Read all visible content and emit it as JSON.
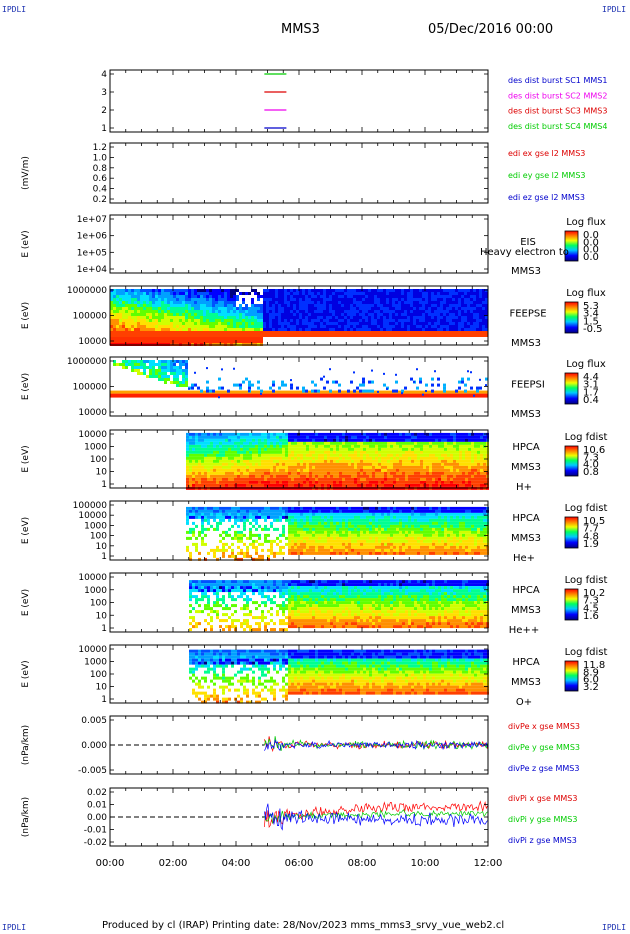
{
  "header": {
    "corner_tl": "IPDLI",
    "corner_tr": "IPDLI",
    "corner_bl": "IPDLI",
    "corner_br": "IPDLI",
    "mission": "MMS3",
    "datetime": "05/Dec/2016 00:00"
  },
  "footer": {
    "text": "Produced by cl (IRAP)   Printing date: 28/Nov/2023   mms_mms3_srvy_vue_web2.cl"
  },
  "colors": {
    "blue": "#0000ff",
    "red": "#ff0000",
    "green": "#00cc00",
    "magenta": "#ff00ff"
  },
  "chart_data": {
    "type": "spectrogram-stack",
    "x_ticks": [
      "00:00",
      "02:00",
      "04:00",
      "06:00",
      "08:00",
      "10:00",
      "12:00"
    ],
    "panels": [
      {
        "id": "burst",
        "y_ticks": [
          "4",
          "3",
          "2",
          "1"
        ],
        "ylabel": "",
        "legend": [
          {
            "text": "des dist burst SC1 MMS1",
            "color": "#0000cc"
          },
          {
            "text": "des dist burst SC2 MMS2",
            "color": "#ee00ee"
          },
          {
            "text": "des dist burst SC3 MMS3",
            "color": "#dd0000"
          },
          {
            "text": "des dist burst SC4 MMS4",
            "color": "#00cc00"
          }
        ],
        "segments": [
          {
            "level": 4,
            "t_start": 4.9,
            "t_end": 5.6,
            "color": "#00cc00"
          },
          {
            "level": 3,
            "t_start": 4.9,
            "t_end": 5.6,
            "color": "#dd0000"
          },
          {
            "level": 2,
            "t_start": 4.9,
            "t_end": 5.6,
            "color": "#ee00ee"
          },
          {
            "level": 1,
            "t_start": 4.9,
            "t_end": 5.6,
            "color": "#0000cc"
          }
        ]
      },
      {
        "id": "edi",
        "y_ticks": [
          "1.2",
          "1.0",
          "0.8",
          "0.6",
          "0.4",
          "0.2"
        ],
        "ylabel": "(mV/m)",
        "legend": [
          {
            "text": "edi ex gse l2 MMS3",
            "color": "#dd0000"
          },
          {
            "text": "edi ey gse l2 MMS3",
            "color": "#00cc00"
          },
          {
            "text": "edi ez gse l2 MMS3",
            "color": "#0000cc"
          }
        ]
      },
      {
        "id": "eis",
        "y_ticks": [
          "1e+07",
          "1e+06",
          "1e+05",
          "1e+04"
        ],
        "ylabel": "E (eV)",
        "instrument": [
          "EIS",
          "MMS3"
        ],
        "overlay": "Heavy electron to",
        "colorbar": {
          "title": "Log flux",
          "ticks": [
            "0.0",
            "0.0",
            "0.0",
            "0.0"
          ]
        }
      },
      {
        "id": "feepse",
        "y_ticks": [
          "1000000",
          "100000",
          "10000"
        ],
        "ylabel": "E (eV)",
        "instrument": [
          "FEEPSE",
          "MMS3"
        ],
        "colorbar": {
          "title": "Log flux",
          "ticks": [
            "5.3",
            "3.4",
            "1.5",
            "-0.5"
          ]
        }
      },
      {
        "id": "feepsi",
        "y_ticks": [
          "1000000",
          "100000",
          "10000"
        ],
        "ylabel": "E (eV)",
        "instrument": [
          "FEEPSI",
          "MMS3"
        ],
        "colorbar": {
          "title": "Log flux",
          "ticks": [
            "4.4",
            "3.1",
            "1.7",
            "0.4"
          ]
        }
      },
      {
        "id": "hpca_h",
        "y_ticks": [
          "10000",
          "1000",
          "100",
          "10",
          "1"
        ],
        "ylabel": "E (eV)",
        "instrument": [
          "HPCA",
          "MMS3",
          "H+"
        ],
        "colorbar": {
          "title": "Log fdist",
          "ticks": [
            "10.6",
            "7.3",
            "4.0",
            "0.8"
          ]
        }
      },
      {
        "id": "hpca_he",
        "y_ticks": [
          "100000",
          "10000",
          "1000",
          "100",
          "10",
          "1"
        ],
        "ylabel": "E (eV)",
        "instrument": [
          "HPCA",
          "MMS3",
          "He+"
        ],
        "colorbar": {
          "title": "Log fdist",
          "ticks": [
            "10.5",
            "7.7",
            "4.8",
            "1.9"
          ]
        }
      },
      {
        "id": "hpca_hepp",
        "y_ticks": [
          "10000",
          "1000",
          "100",
          "10",
          "1"
        ],
        "ylabel": "E (eV)",
        "instrument": [
          "HPCA",
          "MMS3",
          "He++"
        ],
        "colorbar": {
          "title": "Log fdist",
          "ticks": [
            "10.2",
            "7.3",
            "4.5",
            "1.6"
          ]
        }
      },
      {
        "id": "hpca_o",
        "y_ticks": [
          "10000",
          "1000",
          "100",
          "10",
          "1"
        ],
        "ylabel": "E (eV)",
        "instrument": [
          "HPCA",
          "MMS3",
          "O+"
        ],
        "colorbar": {
          "title": "Log fdist",
          "ticks": [
            "11.8",
            "8.9",
            "6.0",
            "3.2"
          ]
        }
      },
      {
        "id": "divpe",
        "y_ticks": [
          "0.005",
          "0.000",
          "-0.005"
        ],
        "ylabel": "(nPa/km)",
        "legend": [
          {
            "text": "divPe x gse MMS3",
            "color": "#dd0000"
          },
          {
            "text": "divPe y gse MMS3",
            "color": "#00cc00"
          },
          {
            "text": "divPe z gse MMS3",
            "color": "#0000cc"
          }
        ]
      },
      {
        "id": "divpi",
        "y_ticks": [
          "0.02",
          "0.01",
          "0.00",
          "-0.01",
          "-0.02"
        ],
        "ylabel": "(nPa/km)",
        "legend": [
          {
            "text": "divPi x gse MMS3",
            "color": "#dd0000"
          },
          {
            "text": "divPi y gse MMS3",
            "color": "#00cc00"
          },
          {
            "text": "divPi z gse MMS3",
            "color": "#0000cc"
          }
        ]
      }
    ]
  }
}
